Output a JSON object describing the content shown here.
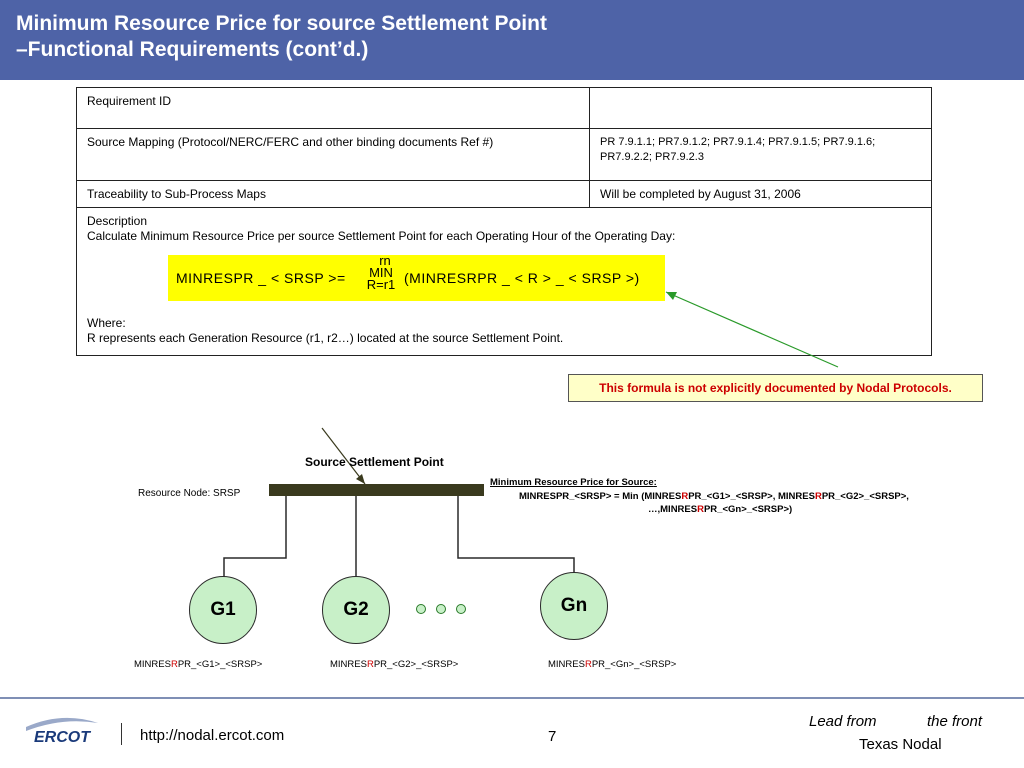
{
  "header": {
    "title_line1": "Minimum Resource Price for source Settlement Point",
    "title_line2": "–Functional Requirements (cont’d.)"
  },
  "table": {
    "row1": {
      "label": "Requirement ID",
      "value": ""
    },
    "row2": {
      "label": "Source Mapping (Protocol/NERC/FERC and other binding documents Ref #)",
      "value": "PR 7.9.1.1; PR7.9.1.2; PR7.9.1.4; PR7.9.1.5; PR7.9.1.6; PR7.9.2.2; PR7.9.2.3"
    },
    "row3": {
      "label": "Traceability to Sub-Process Maps",
      "value": "Will be completed by August 31, 2006"
    },
    "row4": {
      "desc_title": "Description",
      "desc_text": "Calculate Minimum Resource Price per source Settlement Point for each Operating Hour of the Operating Day:",
      "formula_left": "MINRESPR _ < SRSP >=",
      "formula_upper": "rn",
      "formula_min": "MIN",
      "formula_lower": "R=r1",
      "formula_right": "(MINRESRPR _ < R > _ < SRSP >)",
      "where_title": "Where:",
      "where_text": "R represents each Generation Resource (r1, r2…) located at the source Settlement Point."
    }
  },
  "note": "This formula is not explicitly documented by Nodal Protocols.",
  "diagram": {
    "ssp_label": "Source Settlement Point",
    "resource_node": "Resource Node: SRSP",
    "mrp_title": "Minimum Resource Price for Source",
    "mrp_colon": ":",
    "mrp_line1_a": "MINRESPR_<SRSP> = Min (MINRES",
    "mrp_line1_r1": "R",
    "mrp_line1_b": "PR_<G1>_<SRSP>, MINRES",
    "mrp_line1_r2": "R",
    "mrp_line1_c": "PR_<G2>_<SRSP>,",
    "mrp_line2_a": "…,MINRES",
    "mrp_line2_r": "R",
    "mrp_line2_b": "PR_<Gn>_<SRSP>)",
    "gen1": "G1",
    "gen2": "G2",
    "genn": "Gn",
    "g1_label_a": "MINRES",
    "g1_label_r": "R",
    "g1_label_b": "PR_<G1>_<SRSP>",
    "g2_label_a": "MINRES",
    "g2_label_r": "R",
    "g2_label_b": "PR_<G2>_<SRSP>",
    "gn_label_a": "MINRES",
    "gn_label_r": "R",
    "gn_label_b": "PR_<Gn>_<SRSP>"
  },
  "footer": {
    "logo": "ERCOT",
    "url": "http://nodal.ercot.com",
    "page": "7",
    "tagline_a": "Lead from",
    "tagline_b": "the front",
    "tagline_c": "Texas Nodal"
  },
  "colors": {
    "title_bar": "#4e63a7",
    "formula_highlight": "#ffff00",
    "note_text": "#cc0000",
    "generator_fill": "#c8f0c8",
    "bus_bar": "#3a3a1e"
  }
}
